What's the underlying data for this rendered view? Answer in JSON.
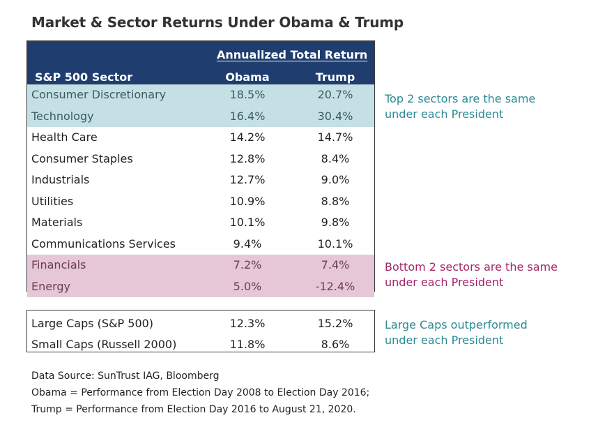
{
  "title": "Market & Sector Returns Under Obama & Trump",
  "header": {
    "group_label": "Annualized Total Return",
    "sector_col": "S&P 500 Sector",
    "col1": "Obama",
    "col2": "Trump"
  },
  "colors": {
    "header_bg": "#1f3d6e",
    "top_highlight": "#c5e0e4",
    "bottom_highlight": "#e6c7d7",
    "teal_note": "#2b8a93",
    "magenta_note": "#a3246a"
  },
  "chart_data": {
    "type": "table",
    "title": "Market & Sector Returns Under Obama & Trump",
    "columns": [
      "S&P 500 Sector",
      "Obama",
      "Trump"
    ],
    "rows": [
      {
        "name": "Consumer Discretionary",
        "obama": "18.5%",
        "trump": "20.7%",
        "highlight": "top"
      },
      {
        "name": "Technology",
        "obama": "16.4%",
        "trump": "30.4%",
        "highlight": "top"
      },
      {
        "name": "Health Care",
        "obama": "14.2%",
        "trump": "14.7%",
        "highlight": ""
      },
      {
        "name": "Consumer Staples",
        "obama": "12.8%",
        "trump": "8.4%",
        "highlight": ""
      },
      {
        "name": "Industrials",
        "obama": "12.7%",
        "trump": "9.0%",
        "highlight": ""
      },
      {
        "name": "Utilities",
        "obama": "10.9%",
        "trump": "8.8%",
        "highlight": ""
      },
      {
        "name": "Materials",
        "obama": "10.1%",
        "trump": "9.8%",
        "highlight": ""
      },
      {
        "name": "Communications Services",
        "obama": "9.4%",
        "trump": "10.1%",
        "highlight": ""
      },
      {
        "name": "Financials",
        "obama": "7.2%",
        "trump": "7.4%",
        "highlight": "bottom"
      },
      {
        "name": "Energy",
        "obama": "5.0%",
        "trump": "-12.4%",
        "highlight": "bottom"
      }
    ],
    "caps": [
      {
        "name": "Large Caps (S&P 500)",
        "obama": "12.3%",
        "trump": "15.2%"
      },
      {
        "name": "Small Caps (Russell 2000)",
        "obama": "11.8%",
        "trump": "8.6%"
      }
    ]
  },
  "notes": {
    "top_line1": "Top 2 sectors are the same",
    "top_line2": "under each President",
    "bottom_line1": "Bottom 2 sectors are the same",
    "bottom_line2": "under each President",
    "caps_line1": "Large Caps outperformed",
    "caps_line2": "under each President"
  },
  "source": {
    "line1": "Data Source: SunTrust IAG, Bloomberg",
    "line2": "Obama = Performance from Election Day 2008 to Election Day 2016;",
    "line3": "Trump = Performance from Election Day 2016 to August 21, 2020."
  }
}
